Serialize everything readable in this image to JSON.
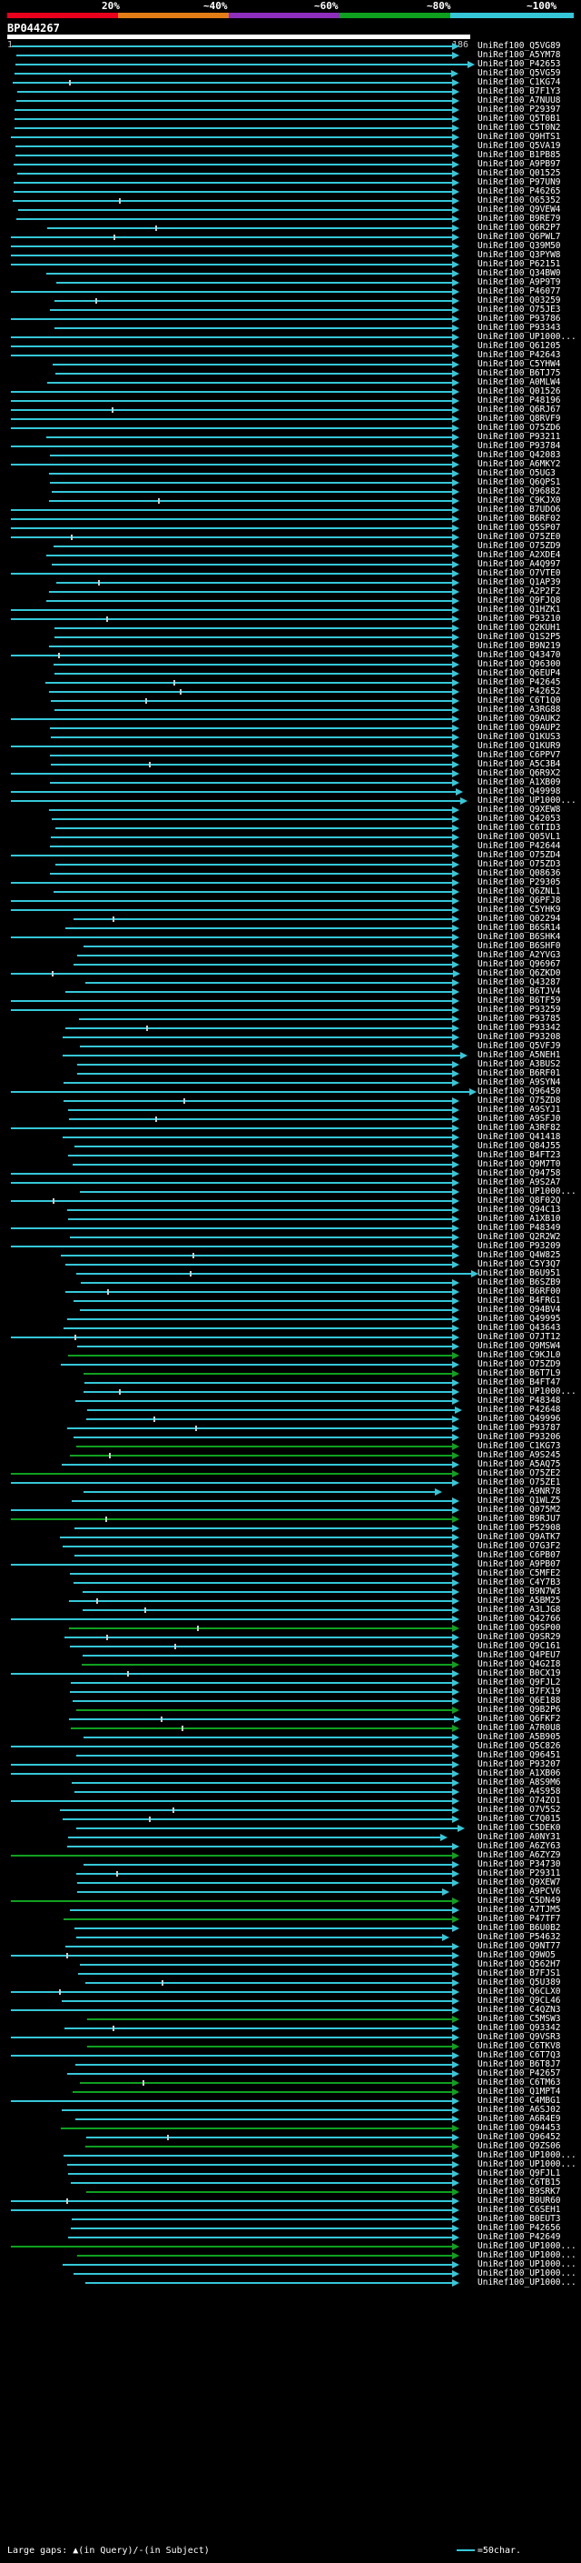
{
  "legend": {
    "labels": [
      "20%",
      "~40%",
      "~60%",
      "~80%",
      "~100%"
    ],
    "colors": [
      "#e8001c",
      "#e27c15",
      "#8d2ebd",
      "#0fa01f",
      "#35c7d8"
    ]
  },
  "query": {
    "title": "BP044267",
    "start_label": "1",
    "end_label": "186"
  },
  "hits": [
    "UniRef100_Q5VG89",
    "UniRef100_A5YM78",
    "UniRef100_P42653",
    "UniRef100_Q5VG59",
    "UniRef100_C1KG74",
    "UniRef100_B7F1Y3",
    "UniRef100_A7NUU8",
    "UniRef100_P29397",
    "UniRef100_Q5T0B1",
    "UniRef100_C5T0N2",
    "UniRef100_Q9HTS1",
    "UniRef100_Q5VA19",
    "UniRef100_B1PB85",
    "UniRef100_A9PB97",
    "UniRef100_Q01525",
    "UniRef100_P97UN9",
    "UniRef100_P46265",
    "UniRef100_O65352",
    "UniRef100_Q9VEW4",
    "UniRef100_B9RE79",
    "UniRef100_Q6R2P7",
    "UniRef100_Q6PWL7",
    "UniRef100_Q39M50",
    "UniRef100_Q3PYW8",
    "UniRef100_P62151",
    "UniRef100_Q34BW0",
    "UniRef100_A9P9T9",
    "UniRef100_P46077",
    "UniRef100_Q03259",
    "UniRef100_O75JE3",
    "UniRef100_P93786",
    "UniRef100_P93343",
    "UniRef100_UP1000...",
    "UniRef100_Q61205",
    "UniRef100_P42643",
    "UniRef100_C5YHW4",
    "UniRef100_B6TJ75",
    "UniRef100_A0MLW4",
    "UniRef100_Q01526",
    "UniRef100_P48196",
    "UniRef100_Q6RJ67",
    "UniRef100_Q8RVF9",
    "UniRef100_O75ZD6",
    "UniRef100_P93211",
    "UniRef100_P93784",
    "UniRef100_Q42083",
    "UniRef100_A6MKY2",
    "UniRef100_O5UG3",
    "UniRef100_Q6QPS1",
    "UniRef100_Q96882",
    "UniRef100_C9KJX0",
    "UniRef100_B7UDO6",
    "UniRef100_B6RF02",
    "UniRef100_Q5SP07",
    "UniRef100_O75ZE0",
    "UniRef100_O75ZD9",
    "UniRef100_A2XDE4",
    "UniRef100_A4Q997",
    "UniRef100_O7VTE0",
    "UniRef100_Q1AP39",
    "UniRef100_A2P2F2",
    "UniRef100_Q9FJQ8",
    "UniRef100_Q1HZK1",
    "UniRef100_P93210",
    "UniRef100_Q2KUH1",
    "UniRef100_Q1S2P5",
    "UniRef100_B9N219",
    "UniRef100_Q43470",
    "UniRef100_Q96300",
    "UniRef100_Q6EUP4",
    "UniRef100_P42645",
    "UniRef100_P42652",
    "UniRef100_C6T1Q0",
    "UniRef100_A3RG88",
    "UniRef100_Q9AUK2",
    "UniRef100_Q9AUP2",
    "UniRef100_Q1KUS3",
    "UniRef100_Q1KUR9",
    "UniRef100_C6PPV7",
    "UniRef100_A5C3B4",
    "UniRef100_Q6R9X2",
    "UniRef100_A1XB09",
    "UniRef100_Q49998",
    "UniRef100_UP1000...",
    "UniRef100_Q9XEW8",
    "UniRef100_Q42053",
    "UniRef100_C6TID3",
    "UniRef100_Q05VL1",
    "UniRef100_P42644",
    "UniRef100_O75ZD4",
    "UniRef100_O75ZD3",
    "UniRef100_Q08636",
    "UniRef100_P29305",
    "UniRef100_Q6ZNL1",
    "UniRef100_Q6PFJ8",
    "UniRef100_C5YHK9",
    "UniRef100_Q02294",
    "UniRef100_B6SR14",
    "UniRef100_B6SHK4",
    "UniRef100_B6SHF0",
    "UniRef100_A2YVG3",
    "UniRef100_Q96967",
    "UniRef100_Q6ZKD0",
    "UniRef100_Q43287",
    "UniRef100_B6TJV4",
    "UniRef100_B6TF59",
    "UniRef100_P93259",
    "UniRef100_P93785",
    "UniRef100_P93342",
    "UniRef100_P93208",
    "UniRef100_Q5VFJ9",
    "UniRef100_A5NEH1",
    "UniRef100_A3BUS2",
    "UniRef100_B6RF01",
    "UniRef100_A9SYN4",
    "UniRef100_Q96450",
    "UniRef100_O75ZD8",
    "UniRef100_A9SYJ1",
    "UniRef100_A9SFJ0",
    "UniRef100_A3RF82",
    "UniRef100_Q41418",
    "UniRef100_Q84J55",
    "UniRef100_B4FT23",
    "UniRef100_Q9M7T0",
    "UniRef100_Q94758",
    "UniRef100_A9S2A7",
    "UniRef100_UP1000...",
    "UniRef100_Q8F02Q",
    "UniRef100_Q94C13",
    "UniRef100_A1XB10",
    "UniRef100_P48349",
    "UniRef100_Q2R2W2",
    "UniRef100_P93209",
    "UniRef100_Q4W825",
    "UniRef100_C5Y3Q7",
    "UniRef100_B6U951",
    "UniRef100_B6SZB9",
    "UniRef100_B6RF00",
    "UniRef100_B4FRG1",
    "UniRef100_Q94BV4",
    "UniRef100_Q49995",
    "UniRef100_Q43643",
    "UniRef100_O7JT12",
    "UniRef100_Q9MSW4",
    "UniRef100_C9KJL0",
    "UniRef100_O75ZD9",
    "UniRef100_B6T7L9",
    "UniRef100_B4FT47",
    "UniRef100_UP1000...",
    "UniRef100_P48348",
    "UniRef100_P42648",
    "UniRef100_Q49996",
    "UniRef100_P93787",
    "UniRef100_P93206",
    "UniRef100_C1KG73",
    "UniRef100_A9S245",
    "UniRef100_A5AQ75",
    "UniRef100_O75ZE2",
    "UniRef100_O75ZE1",
    "UniRef100_A9NR78",
    "UniRef100_Q1WLZ5",
    "UniRef100_Q075M2",
    "UniRef100_B9RJU7",
    "UniRef100_P52908",
    "UniRef100_Q9ATK7",
    "UniRef100_O7G3F2",
    "UniRef100_C6PB07",
    "UniRef100_A9PB07",
    "UniRef100_C5MFE2",
    "UniRef100_C4Y7B3",
    "UniRef100_B9N7W3",
    "UniRef100_A5BM25",
    "UniRef100_A3LJG8",
    "UniRef100_Q42766",
    "UniRef100_Q9SP00",
    "UniRef100_Q9SR29",
    "UniRef100_Q9C161",
    "UniRef100_Q4PEU7",
    "UniRef100_Q4G2I8",
    "UniRef100_B0CX19",
    "UniRef100_Q9FJL2",
    "UniRef100_B7FX19",
    "UniRef100_Q6E188",
    "UniRef100_Q9B2P6",
    "UniRef100_Q6FKF2",
    "UniRef100_A7R0U8",
    "UniRef100_A5B905",
    "UniRef100_Q5C826",
    "UniRef100_Q96451",
    "UniRef100_P93207",
    "UniRef100_A1XB06",
    "UniRef100_A8S9M6",
    "UniRef100_A4S958",
    "UniRef100_O74ZO1",
    "UniRef100_O7V5S2",
    "UniRef100_C7Q015",
    "UniRef100_C5DEK0",
    "UniRef100_A0NY31",
    "UniRef100_A6ZY63",
    "UniRef100_A6ZYZ9",
    "UniRef100_P34730",
    "UniRef100_P29311",
    "UniRef100_Q9XEW7",
    "UniRef100_A9PCV6",
    "UniRef100_C5DN49",
    "UniRef100_A7TJM5",
    "UniRef100_P47TF7",
    "UniRef100_B6U0B2",
    "UniRef100_P54632",
    "UniRef100_Q9NT77",
    "UniRef100_Q9WO5",
    "UniRef100_Q562H7",
    "UniRef100_B7FJS1",
    "UniRef100_Q5U389",
    "UniRef100_Q6CLX0",
    "UniRef100_Q9CL46",
    "UniRef100_C4QZN3",
    "UniRef100_C5MSW3",
    "UniRef100_Q93342",
    "UniRef100_Q9VSR3",
    "UniRef100_C6TKV8",
    "UniRef100_C6T7Q3",
    "UniRef100_B6T8J7",
    "UniRef100_P42657",
    "UniRef100_C6TM63",
    "UniRef100_Q1MPT4",
    "UniRef100_C4MBG1",
    "UniRef100_A6SJ02",
    "UniRef100_A6R4E9",
    "UniRef100_Q94453",
    "UniRef100_Q96452",
    "UniRef100_Q9ZS06",
    "UniRef100_UP1000...",
    "UniRef100_UP1000...",
    "UniRef100_Q9FJL1",
    "UniRef100_C6TB15",
    "UniRef100_B9SRK7",
    "UniRef100_B0UR60",
    "UniRef100_C6SEH1",
    "UniRef100_B0EUT3",
    "UniRef100_P42656",
    "UniRef100_P42649",
    "UniRef100_UP1000...",
    "UniRef100_UP1000...",
    "UniRef100_UP1000...",
    "UniRef100_UP1000...",
    "UniRef100_UP1000..."
  ],
  "footer": {
    "large_gaps_label": "Large gaps:",
    "in_query_label": "(in Query)/",
    "in_subject_label": "-(in Subject)",
    "scale_label": "=50char."
  }
}
